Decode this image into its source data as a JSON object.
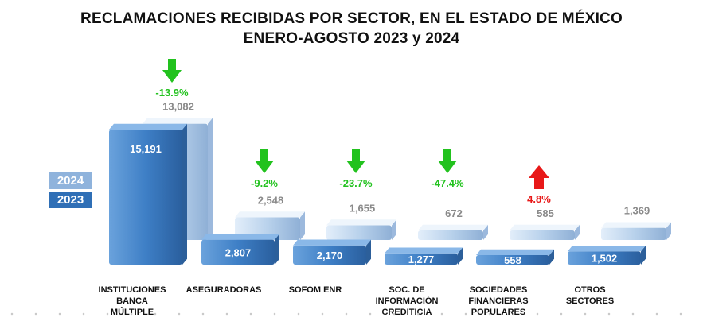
{
  "title_line1": "RECLAMACIONES RECIBIDAS POR SECTOR, EN EL ESTADO DE MÉXICO",
  "title_line2": "ENERO-AGOSTO 2023 y 2024",
  "legend": {
    "y2024": "2024",
    "y2023": "2023"
  },
  "colors": {
    "y2023": "#3e7fc6",
    "y2024": "#b9d2ec",
    "down": "#22c21e",
    "up": "#e81818",
    "value_2024_text": "#8a8a8a"
  },
  "chart_data": {
    "type": "bar",
    "title": "RECLAMACIONES RECIBIDAS POR SECTOR, EN EL ESTADO DE MÉXICO ENERO-AGOSTO 2023 y 2024",
    "categories": [
      [
        "INSTITUCIONES",
        "BANCA",
        "MÚLTIPLE"
      ],
      [
        "ASEGURADORAS"
      ],
      [
        "SOFOM ENR"
      ],
      [
        "SOC. DE",
        "INFORMACIÓN",
        "CREDITICIA"
      ],
      [
        "SOCIEDADES",
        "FINANCIERAS",
        "POPULARES"
      ],
      [
        "OTROS",
        "SECTORES"
      ]
    ],
    "series": [
      {
        "name": "2023",
        "values": [
          15191,
          2807,
          2170,
          1277,
          558,
          1502
        ],
        "labels": [
          "15,191",
          "2,807",
          "2,170",
          "1,277",
          "558",
          "1,502"
        ]
      },
      {
        "name": "2024",
        "values": [
          13082,
          2548,
          1655,
          672,
          585,
          1369
        ],
        "labels": [
          "13,082",
          "2,548",
          "1,655",
          "672",
          "585",
          "1,369"
        ]
      }
    ],
    "changes": [
      {
        "label": "-13.9%",
        "direction": "down"
      },
      {
        "label": "-9.2%",
        "direction": "down"
      },
      {
        "label": "-23.7%",
        "direction": "down"
      },
      {
        "label": "-47.4%",
        "direction": "down"
      },
      {
        "label": "4.8%",
        "direction": "up"
      },
      null
    ]
  }
}
